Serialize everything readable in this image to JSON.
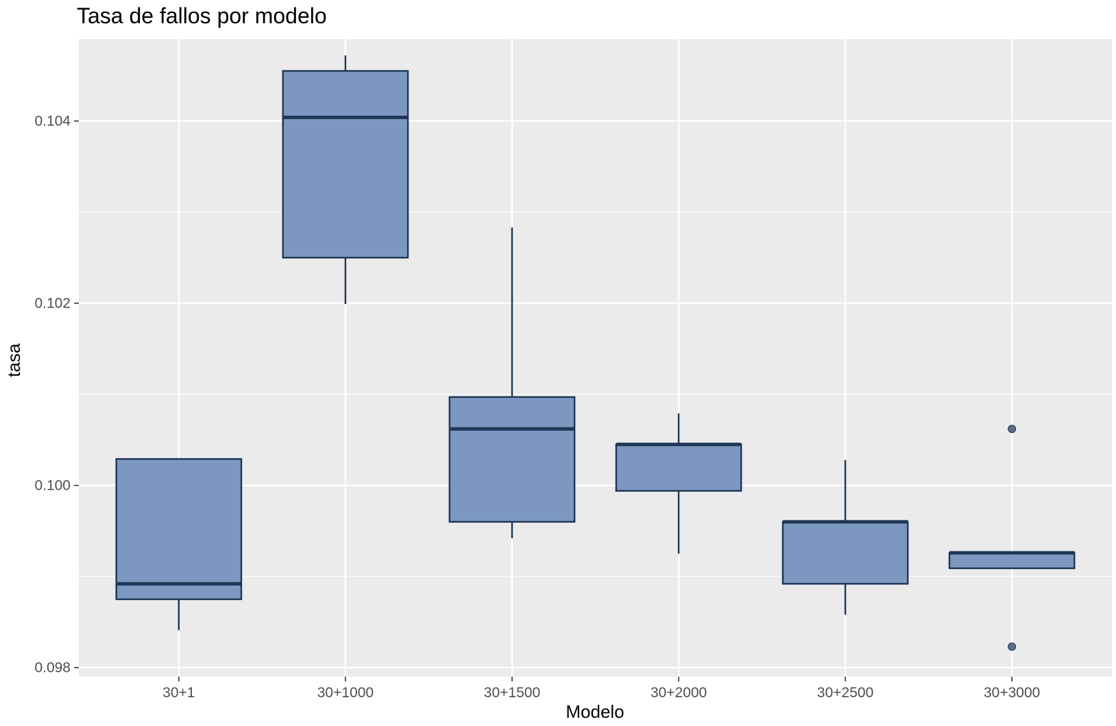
{
  "chart_data": {
    "type": "boxplot",
    "title": "Tasa de fallos por modelo",
    "xlabel": "Modelo",
    "ylabel": "tasa",
    "ylim": [
      0.0979,
      0.1049
    ],
    "y_ticks": [
      0.098,
      0.1,
      0.102,
      0.104
    ],
    "y_tick_labels": [
      "0.098",
      "0.100",
      "0.102",
      "0.104"
    ],
    "y_minor_ticks": [
      0.099,
      0.101,
      0.103
    ],
    "grid": true,
    "categories": [
      "30+1",
      "30+1000",
      "30+1500",
      "30+2000",
      "30+2500",
      "30+3000"
    ],
    "boxes": [
      {
        "category": "30+1",
        "whisker_low": 0.09841,
        "q1": 0.09875,
        "median": 0.09892,
        "q3": 0.10029,
        "whisker_high": 0.10029,
        "outliers": []
      },
      {
        "category": "30+1000",
        "whisker_low": 0.10199,
        "q1": 0.1025,
        "median": 0.10404,
        "q3": 0.10455,
        "whisker_high": 0.10472,
        "outliers": []
      },
      {
        "category": "30+1500",
        "whisker_low": 0.09942,
        "q1": 0.0996,
        "median": 0.10062,
        "q3": 0.10097,
        "whisker_high": 0.10283,
        "outliers": []
      },
      {
        "category": "30+2000",
        "whisker_low": 0.09925,
        "q1": 0.09994,
        "median": 0.10045,
        "q3": 0.10045,
        "whisker_high": 0.10079,
        "outliers": []
      },
      {
        "category": "30+2500",
        "whisker_low": 0.09858,
        "q1": 0.09892,
        "median": 0.0996,
        "q3": 0.0996,
        "whisker_high": 0.10028,
        "outliers": []
      },
      {
        "category": "30+3000",
        "whisker_low": 0.09909,
        "q1": 0.09909,
        "median": 0.09926,
        "q3": 0.09926,
        "whisker_high": 0.09926,
        "outliers": [
          0.09823,
          0.10062
        ]
      }
    ],
    "colors": {
      "box_fill": "#7c98c0",
      "box_stroke": "#1e3555",
      "outlier": "#5c6f87",
      "panel_bg": "#ebebeb",
      "grid": "#ffffff",
      "tick_text": "#4d4d4d"
    }
  }
}
